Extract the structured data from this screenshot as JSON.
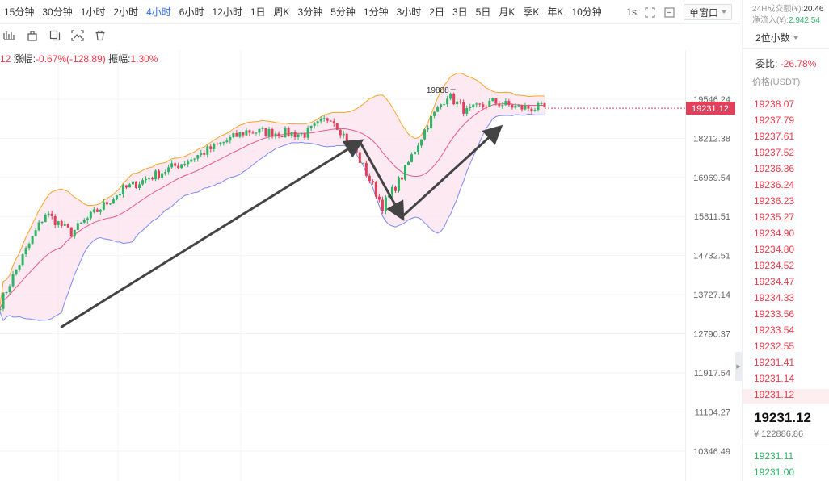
{
  "toolbar": {
    "timeframes": [
      "15分钟",
      "30分钟",
      "1小时",
      "2小时",
      "4小时",
      "6小时",
      "12小时",
      "1日",
      "周K",
      "3分钟",
      "5分钟",
      "1分钟",
      "3小时",
      "2日",
      "3日",
      "5日",
      "月K",
      "季K",
      "年K",
      "10分钟"
    ],
    "active_timeframe": "4小时",
    "interval_short": "1s",
    "window_mode": "单窗口"
  },
  "drawing_tools": [
    "line-tool-icon",
    "brush-tool-icon",
    "copy-tool-icon",
    "screenshot-tool-icon",
    "trash-tool-icon"
  ],
  "infoline": {
    "prefix": "12",
    "change_label": "涨幅:",
    "change_value": "-0.67%(-128.89)",
    "amplitude_label": "振幅:",
    "amplitude_value": "1.30%"
  },
  "chart_data": {
    "type": "candlestick",
    "indicator": "Bollinger Bands",
    "y_axis_ticks": [
      "19546.24",
      "18212.38",
      "16969.54",
      "15811.51",
      "14732.51",
      "13727.14",
      "12790.37",
      "11917.54",
      "11104.27",
      "10346.49"
    ],
    "ylim": [
      10150,
      20300
    ],
    "scale": "log",
    "current_price_label": "19231.12",
    "high_annotation": "19888",
    "grid": true,
    "key_points": [
      {
        "x": 0,
        "close": 13500
      },
      {
        "x": 14,
        "close": 15900
      },
      {
        "x": 22,
        "close": 15350
      },
      {
        "x": 38,
        "close": 16600
      },
      {
        "x": 58,
        "close": 17500
      },
      {
        "x": 76,
        "close": 18450
      },
      {
        "x": 94,
        "close": 18350
      },
      {
        "x": 102,
        "close": 18950
      },
      {
        "x": 110,
        "close": 17700
      },
      {
        "x": 118,
        "close": 16100
      },
      {
        "x": 124,
        "close": 17000
      },
      {
        "x": 132,
        "close": 18700
      },
      {
        "x": 138,
        "close": 19700
      },
      {
        "x": 144,
        "close": 19100
      },
      {
        "x": 152,
        "close": 19450
      },
      {
        "x": 160,
        "close": 19250
      },
      {
        "x": 168,
        "close": 19231
      }
    ]
  },
  "panel": {
    "volume_label": "24H成交额(¥):",
    "volume_value": "20.46",
    "netflow_label": "净流入(¥):",
    "netflow_value": "2,942.54",
    "precision": "2位小数",
    "weibi_label": "委比:",
    "weibi_value": "-26.78%",
    "price_header": "价格(USDT)",
    "asks": [
      "19238.07",
      "19237.79",
      "19237.61",
      "19237.52",
      "19236.36",
      "19236.24",
      "19236.23",
      "19235.27",
      "19234.90",
      "19234.80",
      "19234.52",
      "19234.47",
      "19234.33",
      "19233.56",
      "19233.54",
      "19232.55",
      "19231.41",
      "19231.14",
      "19231.12"
    ],
    "last_price": "19231.12",
    "last_price_cny": "¥ 122886.86",
    "bids": [
      "19231.11",
      "19231.00"
    ]
  }
}
